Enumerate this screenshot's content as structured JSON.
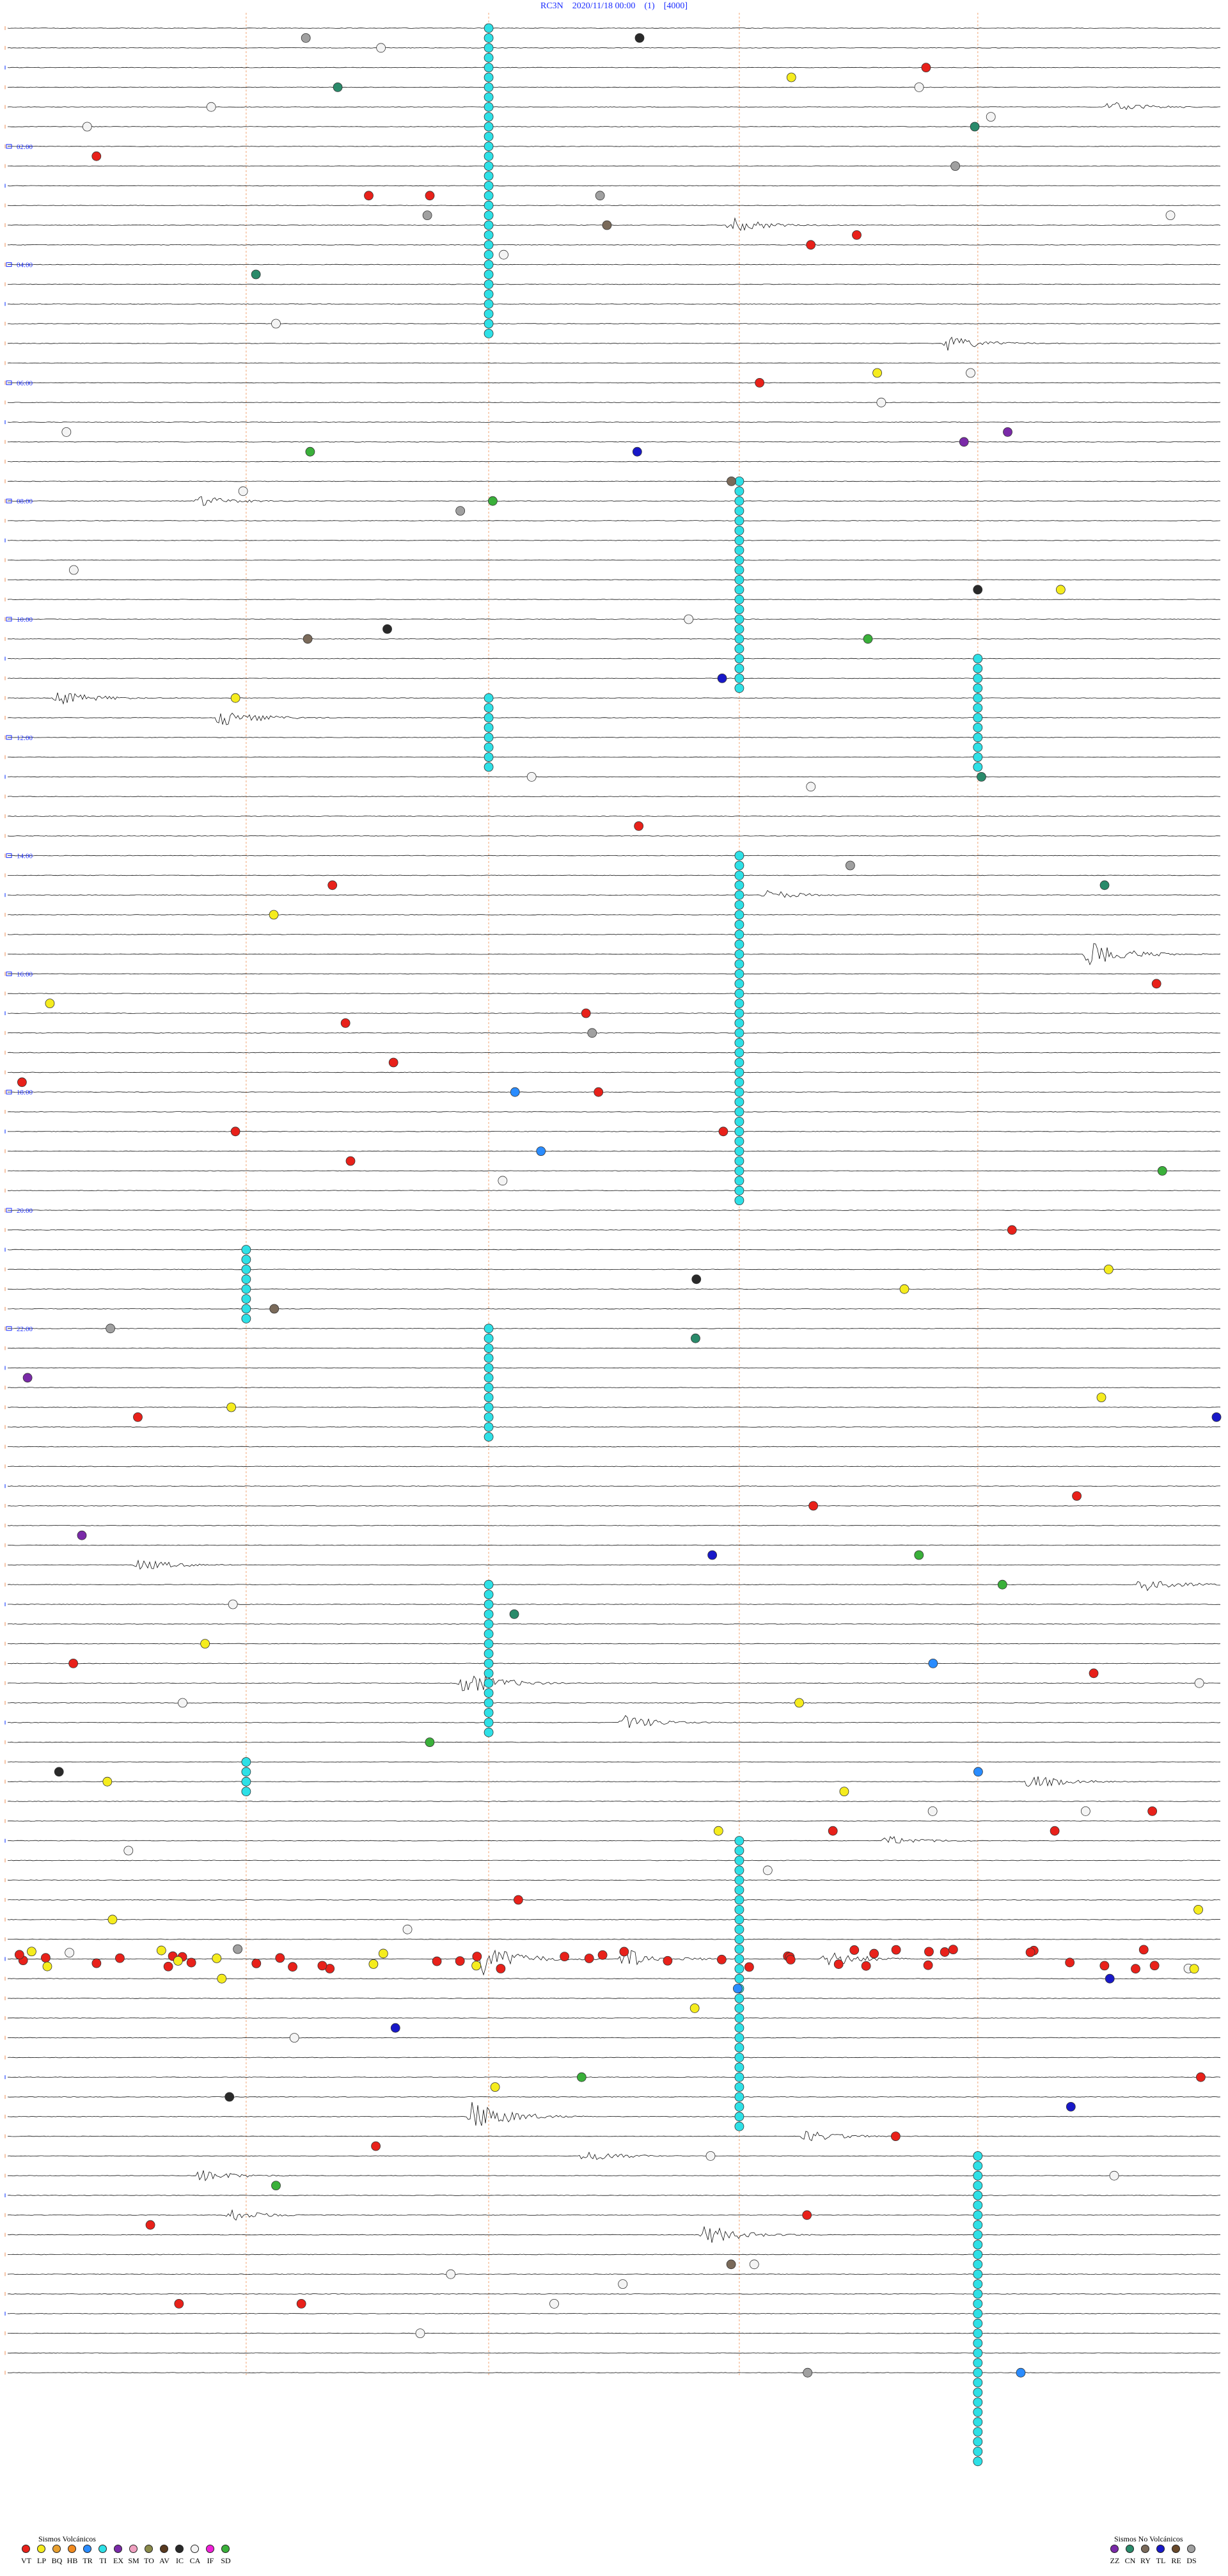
{
  "header": {
    "station": "RC3N",
    "datetime": "2020/11/18 00:00",
    "channel": "(1)",
    "gain": "[4000]"
  },
  "chart_data": {
    "type": "scatter",
    "title": "RC3N    2020/11/18 00:00    (1)    [4000]",
    "hour_labels": [
      "02:00",
      "04:00",
      "06:00",
      "08:00",
      "10:00",
      "12:00",
      "14:00",
      "16:00",
      "18:00",
      "20:00",
      "22:00"
    ],
    "trace_count": 120,
    "cyan_columns": [
      {
        "minute": 23.8,
        "row_start": 0,
        "row_end": 16
      },
      {
        "minute": 36.2,
        "row_start": 23,
        "row_end": 34
      },
      {
        "minute": 23.8,
        "row_start": 34,
        "row_end": 38
      },
      {
        "minute": 48.0,
        "row_start": 32,
        "row_end": 38
      },
      {
        "minute": 36.2,
        "row_start": 42,
        "row_end": 60
      },
      {
        "minute": 11.8,
        "row_start": 62,
        "row_end": 66
      },
      {
        "minute": 23.8,
        "row_start": 66,
        "row_end": 72
      },
      {
        "minute": 23.8,
        "row_start": 79,
        "row_end": 87
      },
      {
        "minute": 11.8,
        "row_start": 88,
        "row_end": 90
      },
      {
        "minute": 36.2,
        "row_start": 92,
        "row_end": 107
      },
      {
        "minute": 48.0,
        "row_start": 108,
        "row_end": 120
      },
      {
        "minute": 48.0,
        "row_start": 120,
        "row_end": 124
      }
    ],
    "seismic_bursts": [
      {
        "row": 4,
        "minute": 54.5,
        "amp": 10
      },
      {
        "row": 10,
        "minute": 35.8,
        "amp": 12
      },
      {
        "row": 16,
        "minute": 46.5,
        "amp": 12
      },
      {
        "row": 24,
        "minute": 9.5,
        "amp": 8
      },
      {
        "row": 34,
        "minute": 2.5,
        "amp": 12
      },
      {
        "row": 35,
        "minute": 10.5,
        "amp": 16
      },
      {
        "row": 44,
        "minute": 37.5,
        "amp": 8
      },
      {
        "row": 47,
        "minute": 53.5,
        "amp": 22
      },
      {
        "row": 78,
        "minute": 6.5,
        "amp": 10
      },
      {
        "row": 79,
        "minute": 56.0,
        "amp": 12
      },
      {
        "row": 84,
        "minute": 22.5,
        "amp": 22
      },
      {
        "row": 86,
        "minute": 30.5,
        "amp": 12
      },
      {
        "row": 89,
        "minute": 50.5,
        "amp": 12
      },
      {
        "row": 92,
        "minute": 43.5,
        "amp": 8
      },
      {
        "row": 98,
        "minute": 23.5,
        "amp": 26
      },
      {
        "row": 98,
        "minute": 30.5,
        "amp": 18
      },
      {
        "row": 98,
        "minute": 40.5,
        "amp": 14
      },
      {
        "row": 106,
        "minute": 23.0,
        "amp": 26
      },
      {
        "row": 107,
        "minute": 39.5,
        "amp": 10
      },
      {
        "row": 108,
        "minute": 28.5,
        "amp": 10
      },
      {
        "row": 109,
        "minute": 9.5,
        "amp": 10
      },
      {
        "row": 111,
        "minute": 11.0,
        "amp": 10
      },
      {
        "row": 112,
        "minute": 34.5,
        "amp": 16
      }
    ],
    "event_dense_rows": [
      98
    ],
    "colors": {
      "VT": "#e8211a",
      "LP": "#f5ec1e",
      "BQ": "#e8a030",
      "HB": "#f28a1e",
      "TR": "#2a8cff",
      "TI": "#2ee0e6",
      "EX": "#7a2aa8",
      "SM": "#f0a0c0",
      "TO": "#8a8a4a",
      "AV": "#5a3a20",
      "IC": "#2a2a2a",
      "CA": "#f4f4f4",
      "IF": "#f020d8",
      "SD": "#3ab03a",
      "ZZ": "#7a2aa8",
      "CN": "#2a8a6a",
      "RY": "#7a6a5a",
      "TL": "#1818c8",
      "RE": "#6a4a2a",
      "DS": "#a0a0a0"
    }
  },
  "legend_volcanic": {
    "title": "Sismos Volcánicos",
    "items": [
      {
        "code": "VT",
        "color": "#e8211a"
      },
      {
        "code": "LP",
        "color": "#f5ec1e"
      },
      {
        "code": "BQ",
        "color": "#e8a030"
      },
      {
        "code": "HB",
        "color": "#f28a1e"
      },
      {
        "code": "TR",
        "color": "#2a8cff"
      },
      {
        "code": "TI",
        "color": "#2ee0e6"
      },
      {
        "code": "EX",
        "color": "#7a2aa8"
      },
      {
        "code": "SM",
        "color": "#f0a0c0"
      },
      {
        "code": "TO",
        "color": "#8a8a4a"
      },
      {
        "code": "AV",
        "color": "#5a3a20"
      },
      {
        "code": "IC",
        "color": "#2a2a2a"
      },
      {
        "code": "CA",
        "color": "#f4f4f4"
      },
      {
        "code": "IF",
        "color": "#f020d8"
      },
      {
        "code": "SD",
        "color": "#3ab03a"
      }
    ]
  },
  "legend_nonvolcanic": {
    "title": "Sismos No Volcánicos",
    "items": [
      {
        "code": "ZZ",
        "color": "#7a2aa8"
      },
      {
        "code": "CN",
        "color": "#2a8a6a"
      },
      {
        "code": "RY",
        "color": "#7a6a5a"
      },
      {
        "code": "TL",
        "color": "#1818c8"
      },
      {
        "code": "RE",
        "color": "#6a4a2a"
      },
      {
        "code": "DS",
        "color": "#a0a0a0"
      }
    ]
  }
}
